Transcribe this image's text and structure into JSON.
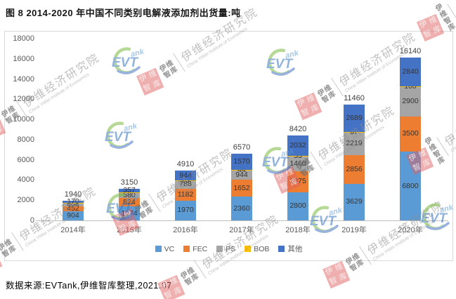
{
  "title": "图 8 2014-2020 年中国不同类别电解液添加剂出货量:吨",
  "source": "数据来源:EVTank,伊维智库整理,2021.07",
  "chart_data": {
    "type": "bar",
    "stacked": true,
    "title": "图 8 2014-2020 年中国不同类别电解液添加剂出货量:吨",
    "unit": "吨",
    "categories": [
      "2014年",
      "2015年",
      "2016年",
      "2017年",
      "2018年",
      "2019年",
      "2020年"
    ],
    "series": [
      {
        "name": "VC",
        "color": "#5B9BD5",
        "values": [
          904,
          1374,
          1970,
          2360,
          2800,
          3629,
          6800
        ]
      },
      {
        "name": "FEC",
        "color": "#ED7D31",
        "values": [
          452,
          824,
          1182,
          1652,
          2075,
          2856,
          3500
        ]
      },
      {
        "name": "PS",
        "color": "#A5A5A5",
        "values": [
          404,
          580,
          788,
          944,
          1460,
          2219,
          2900
        ]
      },
      {
        "name": "BOB",
        "color": "#FFC000",
        "values": [
          10,
          15,
          25,
          44,
          53,
          67,
          100
        ]
      },
      {
        "name": "其他",
        "color": "#4472C4",
        "values": [
          170,
          357,
          944,
          1570,
          2032,
          2689,
          2840
        ]
      }
    ],
    "totals": [
      1940,
      3150,
      4910,
      6570,
      8420,
      11460,
      16140
    ],
    "ylim": [
      0,
      18000
    ],
    "ytick_step": 2000,
    "grid": false,
    "legend_position": "bottom"
  },
  "watermark": {
    "stamp_chars": [
      "伊",
      "维",
      "智",
      "库"
    ],
    "side_line1": "伊维",
    "side_line2": "智库",
    "org_cn": "伊维经济研究院",
    "org_en": "China YiWei Institute of Economics",
    "logo_main": "EVT",
    "logo_suffix": "ank"
  }
}
